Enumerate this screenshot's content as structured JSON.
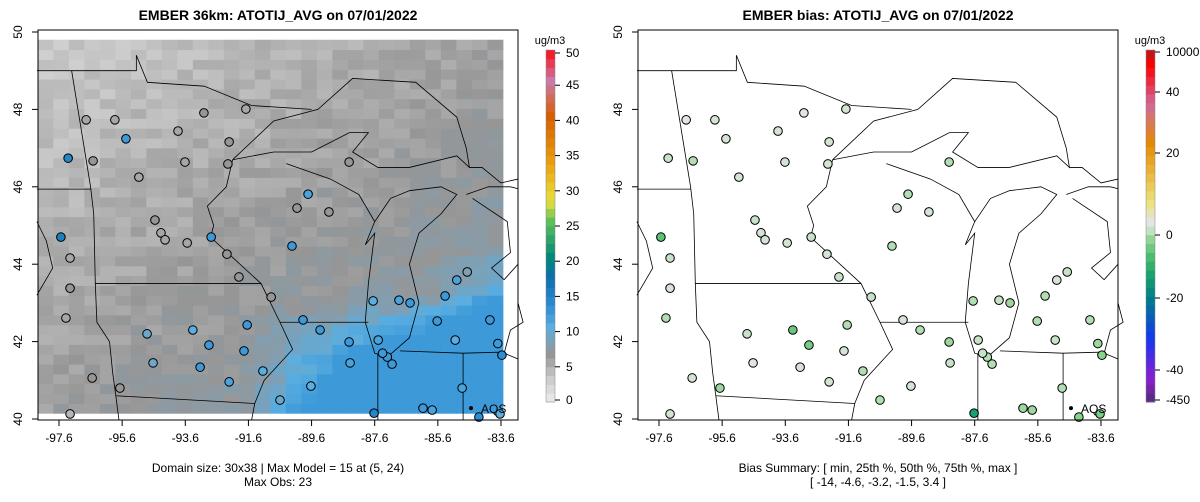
{
  "chart_data": [
    {
      "type": "heatmap",
      "title": "EMBER 36km: ATOTIJ_AVG on 07/01/2022",
      "xlabel": "",
      "ylabel": "",
      "xticks": [
        "-97.6",
        "-95.6",
        "-93.6",
        "-91.6",
        "-89.6",
        "-87.6",
        "-85.6",
        "-83.6"
      ],
      "yticks": [
        "40",
        "42",
        "44",
        "46",
        "48",
        "50"
      ],
      "xlim": [
        -98.27,
        -83.06
      ],
      "ylim": [
        39.97,
        50.05
      ],
      "grid_size": [
        30,
        38
      ],
      "colorbar": {
        "unit": "ug/m3",
        "ticks": [
          "0",
          "5",
          "10",
          "15",
          "20",
          "25",
          "30",
          "35",
          "40",
          "45",
          "50"
        ],
        "range": [
          0,
          50
        ]
      },
      "caption": [
        "Domain size: 30x38 | Max Model = 15 at (5, 24)",
        "Max Obs: 23"
      ],
      "marker_label": "AQS",
      "marker": [
        -84.55,
        40.28
      ]
    },
    {
      "type": "scatter",
      "title": "EMBER bias: ATOTIJ_AVG on 07/01/2022",
      "xticks": [
        "-97.6",
        "-95.6",
        "-93.6",
        "-91.6",
        "-89.6",
        "-87.6",
        "-85.6",
        "-83.6"
      ],
      "yticks": [
        "40",
        "42",
        "44",
        "46",
        "48",
        "50"
      ],
      "xlim": [
        -98.27,
        -83.06
      ],
      "ylim": [
        39.97,
        50.05
      ],
      "colorbar": {
        "unit": "ug/m3",
        "ticks": [
          "10000",
          "40",
          "20",
          "0",
          "-20",
          "-40",
          "-450"
        ]
      },
      "caption": [
        "Bias Summary: [ min, 25th %, 50th %, 75th %, max ]",
        "[ -14,   -4.6,   -3.2,   -1.5,   3.4 ]"
      ],
      "marker_label": "AQS",
      "marker": [
        -84.55,
        40.28
      ]
    }
  ],
  "stations": [
    [
      -97.31,
      46.74,
      14,
      -2
    ],
    [
      -97.54,
      44.7,
      15,
      -8
    ],
    [
      -96.52,
      46.67,
      6,
      -3
    ],
    [
      -97.25,
      44.16,
      5,
      -2
    ],
    [
      -97.25,
      43.38,
      6,
      -1
    ],
    [
      -97.38,
      42.61,
      5,
      -3
    ],
    [
      -96.55,
      41.06,
      6,
      -1
    ],
    [
      -97.25,
      40.13,
      4,
      -1
    ],
    [
      -95.67,
      40.8,
      6,
      -4
    ],
    [
      -96.74,
      47.73,
      5,
      0
    ],
    [
      -95.83,
      47.73,
      5,
      -1
    ],
    [
      -95.48,
      47.24,
      12,
      -1
    ],
    [
      -95.07,
      46.25,
      5,
      -1
    ],
    [
      -93.83,
      47.44,
      5,
      -1
    ],
    [
      -93.01,
      47.91,
      6,
      0
    ],
    [
      -93.61,
      46.64,
      5,
      -1
    ],
    [
      -92.25,
      46.59,
      6,
      -1
    ],
    [
      -92.21,
      47.16,
      6,
      -1
    ],
    [
      -91.68,
      48.01,
      5,
      -1
    ],
    [
      -94.56,
      45.14,
      6,
      -2
    ],
    [
      -94.37,
      44.81,
      5,
      -1
    ],
    [
      -94.24,
      44.63,
      5,
      -1
    ],
    [
      -93.54,
      44.55,
      5,
      -1
    ],
    [
      -92.78,
      44.7,
      12,
      -2
    ],
    [
      -92.28,
      44.26,
      6,
      -1
    ],
    [
      -91.9,
      43.67,
      6,
      -2
    ],
    [
      -91.64,
      42.43,
      12,
      -3
    ],
    [
      -92.85,
      41.91,
      12,
      -6
    ],
    [
      -93.13,
      41.34,
      12,
      -1
    ],
    [
      -92.21,
      40.96,
      11,
      -1
    ],
    [
      -90.22,
      44.47,
      12,
      -3
    ],
    [
      -90.06,
      45.45,
      6,
      -1
    ],
    [
      -89.05,
      45.35,
      6,
      -1
    ],
    [
      -88.41,
      46.64,
      6,
      -3
    ],
    [
      -90.88,
      43.15,
      6,
      -2
    ],
    [
      -89.87,
      42.56,
      12,
      -1
    ],
    [
      -89.33,
      42.3,
      12,
      -3
    ],
    [
      -88.41,
      41.99,
      12,
      -4
    ],
    [
      -87.49,
      42.04,
      11,
      -2
    ],
    [
      -87.05,
      41.42,
      12,
      -3
    ],
    [
      -87.65,
      43.05,
      10,
      -3
    ],
    [
      -86.48,
      43.0,
      12,
      -4
    ],
    [
      -85.37,
      43.18,
      12,
      -3
    ],
    [
      -84.67,
      43.8,
      8,
      -2
    ],
    [
      -85.62,
      42.53,
      12,
      -3
    ],
    [
      -85.05,
      42.04,
      10,
      -2
    ],
    [
      -83.95,
      42.56,
      12,
      -3
    ],
    [
      -83.57,
      41.65,
      13,
      -5
    ],
    [
      -84.83,
      40.8,
      11,
      -3
    ],
    [
      -86.07,
      40.28,
      12,
      -4
    ],
    [
      -87.62,
      40.15,
      14,
      -14
    ],
    [
      -89.62,
      40.85,
      10,
      -1
    ],
    [
      -90.6,
      40.49,
      9,
      -3
    ],
    [
      -94.81,
      42.2,
      9,
      -2
    ],
    [
      -94.62,
      41.45,
      9,
      0
    ],
    [
      -93.36,
      42.3,
      10,
      -7
    ],
    [
      -91.14,
      41.24,
      10,
      -3
    ],
    [
      -91.74,
      41.76,
      12,
      -1
    ],
    [
      -88.38,
      41.45,
      11,
      -2
    ],
    [
      -89.71,
      45.81,
      11,
      -3
    ],
    [
      -83.63,
      40.13,
      10,
      -6
    ],
    [
      -85.78,
      40.23,
      11,
      -4
    ],
    [
      -86.83,
      43.07,
      11,
      -2
    ],
    [
      -85.0,
      43.59,
      11,
      -1
    ],
    [
      -87.2,
      41.6,
      12,
      -3
    ],
    [
      -87.35,
      41.7,
      12,
      -2
    ],
    [
      -83.7,
      41.95,
      12,
      -4
    ],
    [
      -84.3,
      40.05,
      13,
      -5
    ]
  ]
}
